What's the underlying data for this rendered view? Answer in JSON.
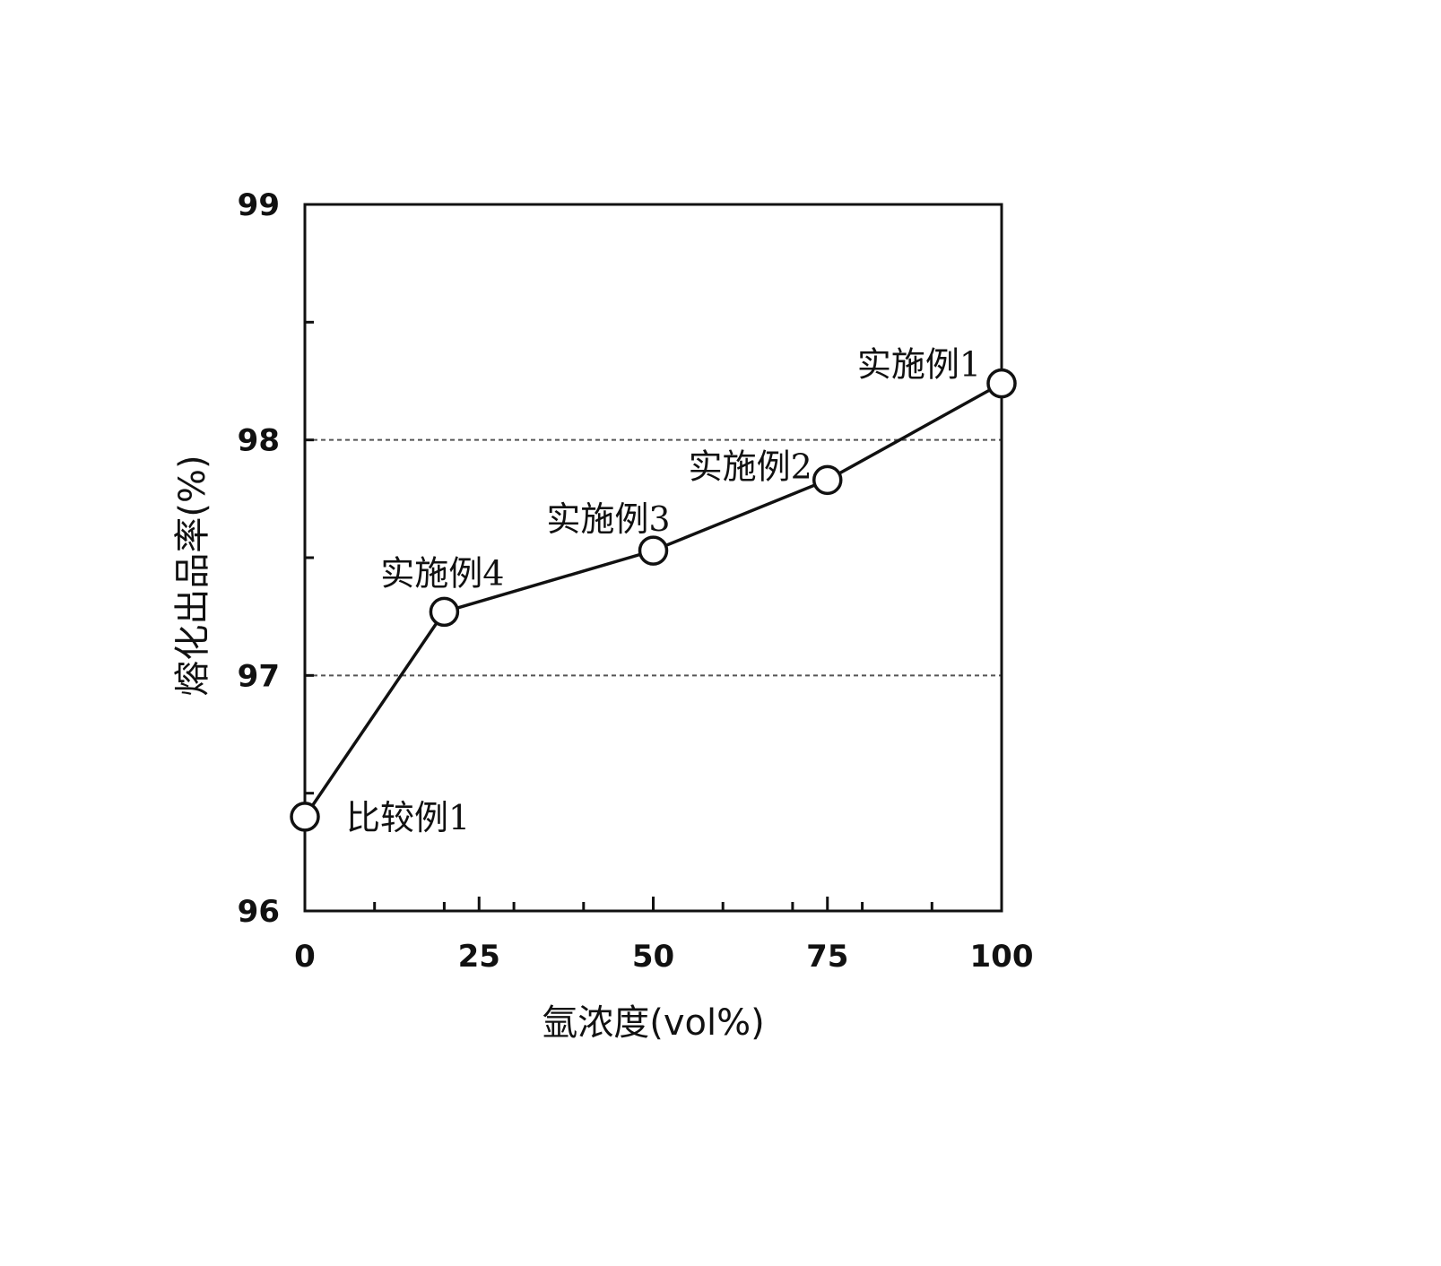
{
  "chart_data": {
    "type": "line",
    "title": "",
    "xlabel": "氩浓度(vol%)",
    "ylabel": "熔化出品率(%)",
    "xlim": [
      0,
      100
    ],
    "ylim": [
      96,
      99
    ],
    "x_ticks": [
      "0",
      "25",
      "50",
      "75",
      "100"
    ],
    "y_ticks": [
      "96",
      "97",
      "98",
      "99"
    ],
    "grid": "dashed horizontal at 97 and 98",
    "series": [
      {
        "x": [
          0,
          20,
          50,
          75,
          100
        ],
        "y": [
          96.4,
          97.27,
          97.53,
          97.83,
          98.24
        ],
        "point_labels": [
          "比较例1",
          "实施例4",
          "实施例3",
          "实施例2",
          "实施例1"
        ]
      }
    ],
    "colors": {
      "line": "#111111",
      "marker_fill": "#ffffff",
      "grid": "#555555"
    }
  }
}
